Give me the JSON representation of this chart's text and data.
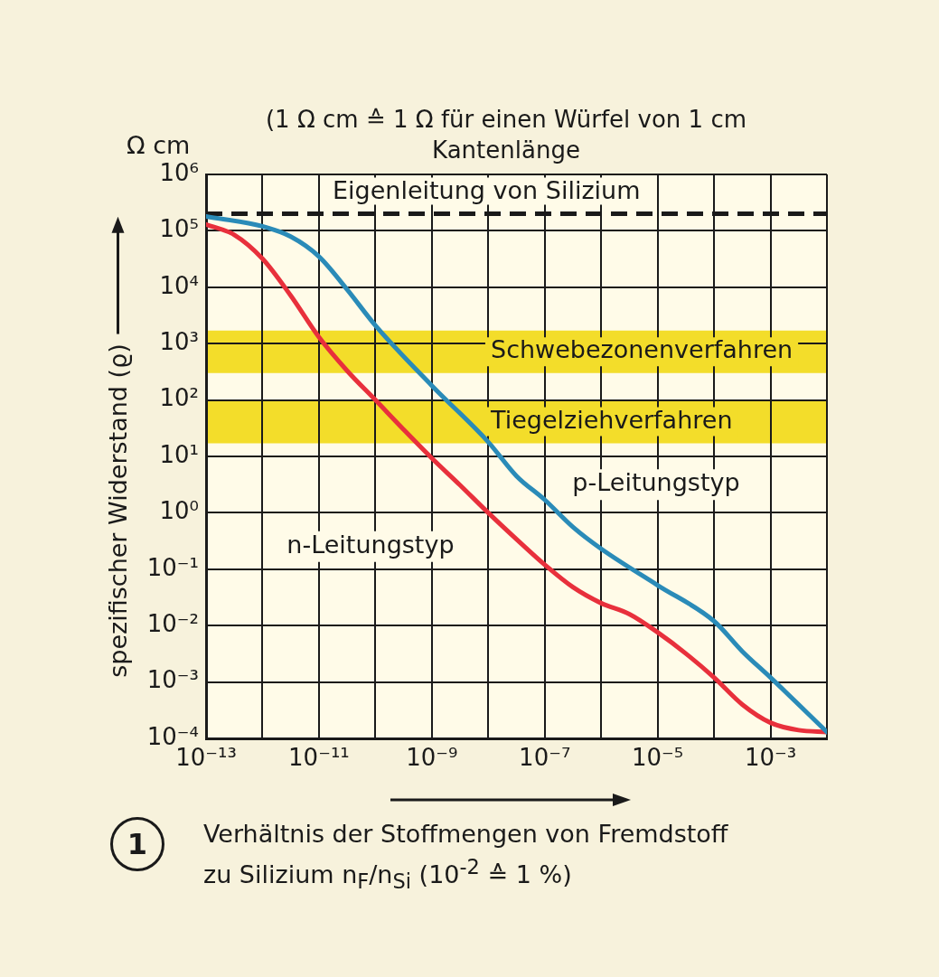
{
  "chart_data": {
    "type": "line",
    "title": "(1 Ω cm ≙ 1 Ω  für einen Würfel von 1 cm Kantenlänge",
    "xlabel": "Verhältnis der Stoffmengen von Fremdstoff zu Silizium n$_{F}$/n$_{Si}$  (10$^{-2}$ ≙ 1 %)",
    "ylabel": "spezifischer Widerstand (ϱ)",
    "annotations": [
      "Ω cm",
      "1"
    ],
    "log": "xy",
    "grid": true,
    "legend": false,
    "marker": "none",
    "line_style": "solid",
    "xlim": [
      1e-13,
      0.01
    ],
    "xticks": [
      {
        "value": 1e-13,
        "label": "10⁻¹³"
      },
      {
        "value": 1e-12,
        "label": null
      },
      {
        "value": 1e-11,
        "label": "10⁻¹¹"
      },
      {
        "value": 1e-10,
        "label": null
      },
      {
        "value": 1e-09,
        "label": "10⁻⁹"
      },
      {
        "value": 1e-08,
        "label": null
      },
      {
        "value": 1e-07,
        "label": "10⁻⁷"
      },
      {
        "value": 1e-06,
        "label": null
      },
      {
        "value": 1e-05,
        "label": "10⁻⁵"
      },
      {
        "value": 0.0001,
        "label": null
      },
      {
        "value": 0.001,
        "label": "10⁻³"
      },
      {
        "value": 0.01,
        "label": null
      }
    ],
    "ylim": [
      0.0001,
      1000000.0
    ],
    "yticks": [
      {
        "value": 0.0001,
        "label": "10⁻⁴"
      },
      {
        "value": 0.001,
        "label": "10⁻³"
      },
      {
        "value": 0.01,
        "label": "10⁻²"
      },
      {
        "value": 0.1,
        "label": "10⁻¹"
      },
      {
        "value": 1,
        "label": "10⁰"
      },
      {
        "value": 10,
        "label": "10¹"
      },
      {
        "value": 100,
        "label": "10²"
      },
      {
        "value": 1000,
        "label": "10³"
      },
      {
        "value": 10000.0,
        "label": "10⁴"
      },
      {
        "value": 100000.0,
        "label": "10⁵"
      },
      {
        "value": 1000000.0,
        "label": "10⁶"
      }
    ],
    "ref_lines": [
      {
        "axis": "y",
        "value": 200000,
        "label": "Eigenleitung von Silizium",
        "color": "#1a1a1a",
        "line_style": "dashed"
      }
    ],
    "bands": [
      {
        "axis": "y",
        "from": 300,
        "to": 1700,
        "label": "Schwebezonenverfahren",
        "color": "#f3dd2a"
      },
      {
        "axis": "y",
        "from": 17,
        "to": 100,
        "label": "Tiegelziehverfahren",
        "color": "#f3dd2a"
      }
    ],
    "series": [
      {
        "name": "p-Leitungstyp",
        "color": "#2a8bb8",
        "x": [
          1e-13,
          1e-12,
          3.16e-12,
          1e-11,
          3.16e-11,
          1e-10,
          1e-09,
          1e-08,
          3.16e-08,
          1e-07,
          3.16e-07,
          1e-06,
          1e-05,
          0.0001,
          0.000316,
          0.001,
          0.01
        ],
        "values": [
          180000,
          120000,
          79000,
          35000,
          9100,
          2100,
          180,
          18,
          4.5,
          1.7,
          0.56,
          0.23,
          0.052,
          0.012,
          0.0035,
          0.0012,
          0.00013
        ]
      },
      {
        "name": "n-Leitungstyp",
        "color": "#e8303c",
        "x": [
          1e-13,
          3.16e-13,
          1e-12,
          3.16e-12,
          1e-11,
          3.16e-11,
          1e-10,
          3.16e-10,
          1e-09,
          3.16e-09,
          1e-08,
          3.16e-08,
          1e-07,
          3.16e-07,
          1e-06,
          3.16e-06,
          1e-05,
          3.16e-05,
          0.0001,
          0.000316,
          0.001,
          0.00316,
          0.01
        ],
        "values": [
          130000,
          85000,
          32000,
          7100,
          1300,
          330,
          100,
          30,
          9.3,
          3.1,
          1,
          0.34,
          0.12,
          0.048,
          0.025,
          0.016,
          0.0076,
          0.0032,
          0.0012,
          0.0004,
          0.00019,
          0.00014,
          0.00013
        ]
      }
    ]
  }
}
